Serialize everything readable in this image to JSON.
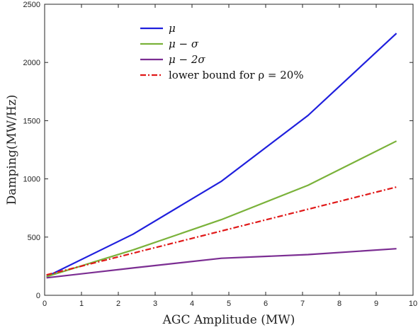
{
  "chart_data": {
    "type": "line",
    "title": "",
    "xlabel": "AGC Amplitude (MW)",
    "ylabel": "Damping(MW/Hz)",
    "xlim": [
      0,
      10
    ],
    "ylim": [
      0,
      2500
    ],
    "xticks": [
      0,
      1,
      2,
      3,
      4,
      5,
      6,
      7,
      8,
      9,
      10
    ],
    "yticks": [
      0,
      500,
      1000,
      1500,
      2000,
      2500
    ],
    "grid": false,
    "legend_position": "top-center",
    "series": [
      {
        "name": "μ",
        "color": "#1f1fdd",
        "dash": "solid",
        "x": [
          0.05,
          2.4,
          4.8,
          7.15,
          9.55
        ],
        "y": [
          160,
          525,
          980,
          1545,
          2250
        ]
      },
      {
        "name": "μ − σ",
        "color": "#7ab23a",
        "dash": "solid",
        "x": [
          0.05,
          2.4,
          4.8,
          7.15,
          9.55
        ],
        "y": [
          160,
          390,
          650,
          945,
          1325
        ]
      },
      {
        "name": "μ − 2σ",
        "color": "#7b2d92",
        "dash": "solid",
        "x": [
          0.05,
          2.4,
          4.8,
          7.15,
          9.55
        ],
        "y": [
          150,
          235,
          318,
          350,
          400
        ]
      },
      {
        "name": "lower bound for ρ = 20%",
        "color": "#e01818",
        "dash": "dashdot",
        "x": [
          0.05,
          9.55
        ],
        "y": [
          175,
          930
        ]
      }
    ]
  }
}
